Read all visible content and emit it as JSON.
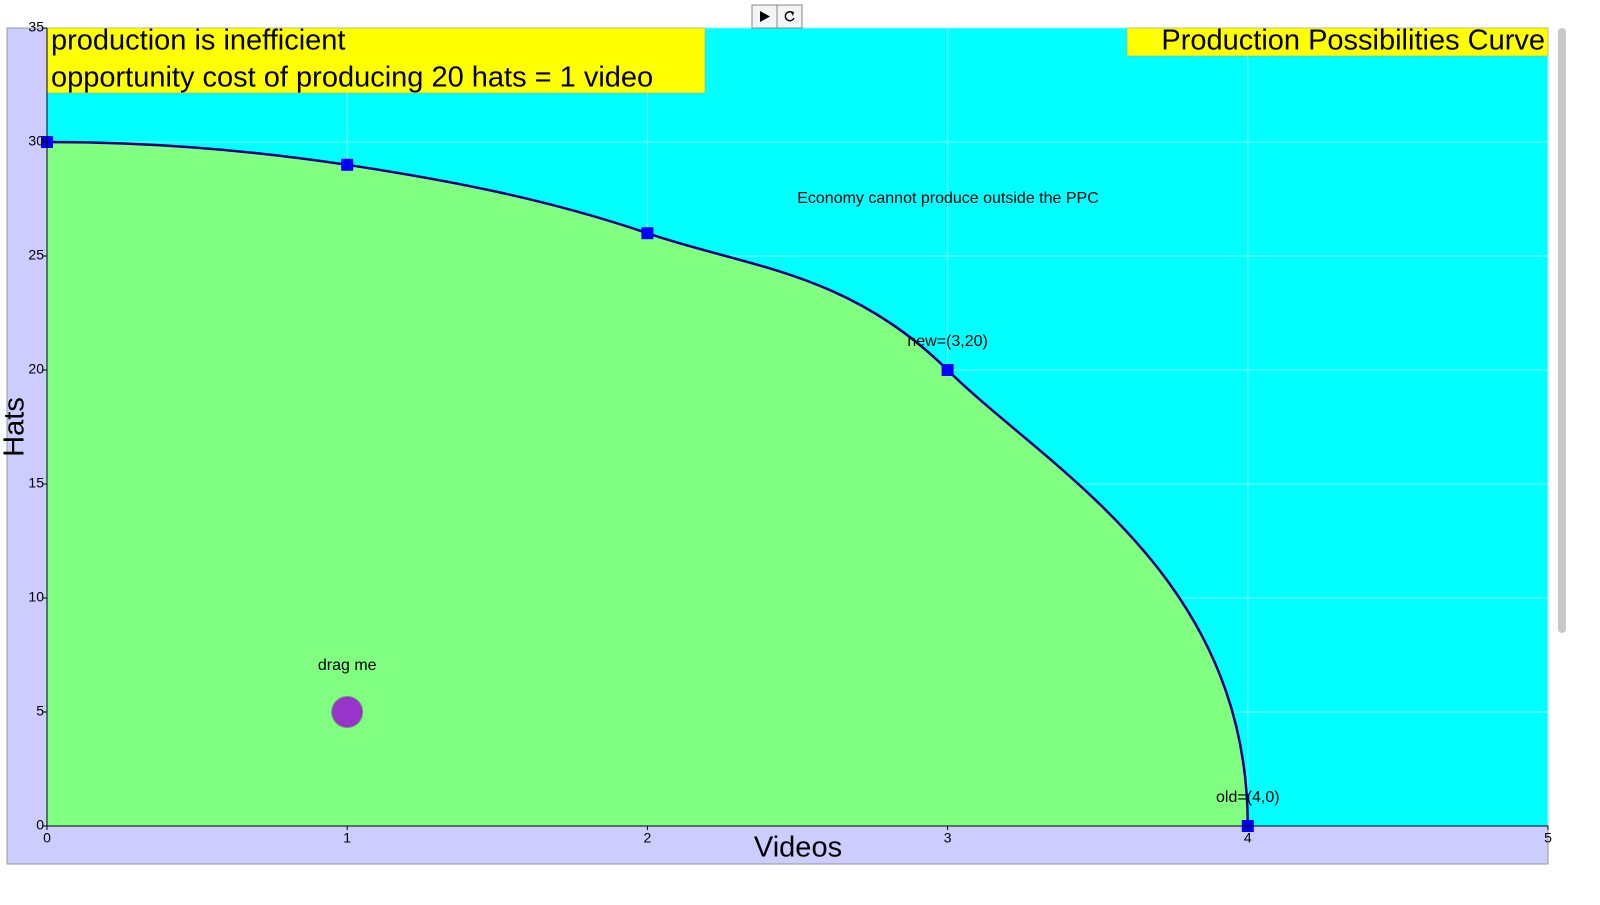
{
  "chart_data": {
    "type": "line",
    "title": "Production Possibilities Curve",
    "status": [
      "production is inefficient",
      "opportunity cost of producing 20 hats = 1 video"
    ],
    "annotation": "Economy cannot produce outside the PPC",
    "x_label": "Videos",
    "y_label": "Hats",
    "x": [
      0,
      1,
      2,
      3,
      4
    ],
    "series": [
      {
        "color": "#00007f",
        "marker_color": "#0000ff",
        "values": [
          30,
          29,
          26,
          20,
          0
        ]
      }
    ],
    "point_labels": [
      null,
      null,
      null,
      "new=(3,20)",
      "old=(4,0)"
    ],
    "drag_point": {
      "x": 1,
      "y": 5,
      "label": "drag me",
      "color": "#9933cc"
    },
    "xlim": [
      0,
      5
    ],
    "ylim": [
      0,
      35
    ],
    "xticks": [
      0,
      1,
      2,
      3,
      4,
      5
    ],
    "yticks": [
      0,
      5,
      10,
      15,
      20,
      25,
      30,
      35
    ],
    "grid": true,
    "inside_color": "#80ff80",
    "outside_color": "#00ffff",
    "frame_color": "#ccccff",
    "box_color": "#ffff00"
  }
}
